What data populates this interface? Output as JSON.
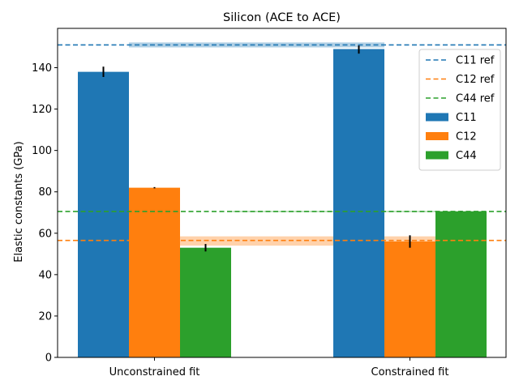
{
  "chart_data": {
    "type": "bar",
    "title": "Silicon (ACE to ACE)",
    "xlabel": "",
    "ylabel": "Elastic constants (GPa)",
    "ylim": [
      0,
      159
    ],
    "yticks": [
      0,
      20,
      40,
      60,
      80,
      100,
      120,
      140
    ],
    "grid": false,
    "legend_position": "top-right",
    "categories": [
      "Unconstrained fit",
      "Constrained fit"
    ],
    "series": [
      {
        "name": "C11",
        "color": "#1f77b4",
        "values": [
          138,
          149
        ],
        "errors": [
          2.5,
          2.2
        ]
      },
      {
        "name": "C12",
        "color": "#ff7f0e",
        "values": [
          82,
          56
        ],
        "errors": [
          0.3,
          3.0
        ]
      },
      {
        "name": "C44",
        "color": "#2ca02c",
        "values": [
          53,
          70.5
        ],
        "errors": [
          1.8,
          0.3
        ]
      }
    ],
    "reference_lines": [
      {
        "name": "C11 ref",
        "color": "#1f77b4",
        "value": 151
      },
      {
        "name": "C12 ref",
        "color": "#ff7f0e",
        "value": 56.5
      },
      {
        "name": "C44 ref",
        "color": "#2ca02c",
        "value": 70.5
      }
    ],
    "reference_bands": [
      {
        "color": "#1f77b4",
        "low": 149.8,
        "high": 152.2
      },
      {
        "color": "#ff7f0e",
        "low": 54,
        "high": 58.5
      },
      {
        "color": "#2ca02c",
        "low": 70.2,
        "high": 70.8
      }
    ]
  }
}
